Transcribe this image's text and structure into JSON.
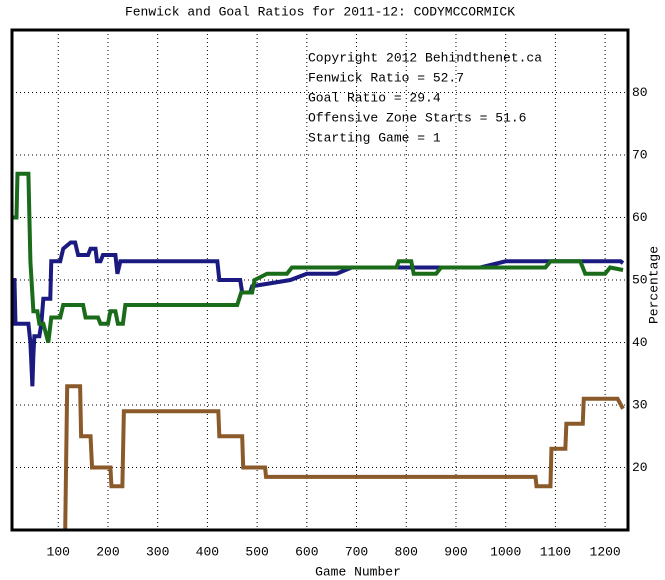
{
  "chart_data": {
    "type": "line",
    "title": "Fenwick and Goal Ratios for 2011-12: CODYMCCORMICK",
    "x_label": "Game Number",
    "y_label": "Percentage",
    "xlim": [
      7,
      1246
    ],
    "ylim": [
      10,
      90
    ],
    "xticks": [
      100,
      200,
      300,
      400,
      500,
      600,
      700,
      800,
      900,
      1000,
      1100,
      1200
    ],
    "yticks": [
      20,
      30,
      40,
      50,
      60,
      70,
      80
    ],
    "grid": true,
    "annotations": [
      {
        "text": "Copyright 2012 Behindthenet.ca",
        "color": "#000000"
      },
      {
        "text": "Fenwick Ratio = 52.7",
        "color": "#1a1a80"
      },
      {
        "text": "Goal Ratio = 29.4",
        "color": "#8b5a2b"
      },
      {
        "text": "Offensive Zone Starts = 51.6",
        "color": "#1a6b1a"
      },
      {
        "text": "Starting Game = 1",
        "color": "#000000"
      }
    ],
    "series": [
      {
        "color": "#1a1a80",
        "x": [
          8,
          12,
          14,
          40,
          44,
          48,
          50,
          52,
          62,
          66,
          70,
          84,
          86,
          104,
          110,
          125,
          134,
          140,
          160,
          165,
          175,
          178,
          185,
          190,
          215,
          219,
          225,
          420,
          424,
          466,
          470,
          486,
          490,
          567,
          600,
          660,
          690,
          949,
          1000,
          1110,
          1150,
          1231,
          1236
        ],
        "values": [
          50,
          50,
          43,
          43,
          40,
          33,
          38,
          41,
          41,
          43,
          47,
          47,
          53,
          53,
          55,
          56,
          56,
          54,
          54,
          55,
          55,
          53,
          53,
          54,
          54,
          51,
          53,
          53,
          50,
          50,
          48,
          48,
          49,
          50,
          51,
          51,
          52,
          52,
          53,
          53,
          53,
          53,
          52.7
        ]
      },
      {
        "color": "#8b5a2b",
        "x": [
          114,
          118,
          144,
          146,
          165,
          168,
          205,
          207,
          229,
          232,
          422,
          424,
          470,
          472,
          516,
          518,
          1060,
          1062,
          1090,
          1092,
          1120,
          1122,
          1155,
          1157,
          1225,
          1236
        ],
        "values": [
          10,
          33,
          33,
          25,
          25,
          20,
          20,
          17,
          17,
          29,
          29,
          25,
          25,
          20,
          20,
          18.5,
          18.5,
          17,
          17,
          23,
          23,
          27,
          27,
          31,
          31,
          29.4
        ]
      },
      {
        "color": "#1a6b1a",
        "x": [
          8,
          16,
          18,
          40,
          44,
          50,
          58,
          62,
          70,
          80,
          86,
          104,
          110,
          150,
          155,
          180,
          185,
          200,
          205,
          215,
          220,
          230,
          235,
          460,
          468,
          490,
          495,
          520,
          560,
          570,
          780,
          785,
          810,
          815,
          860,
          870,
          1080,
          1090,
          1150,
          1160,
          1200,
          1210,
          1236
        ],
        "values": [
          60,
          60,
          67,
          67,
          53,
          45,
          45,
          43,
          43,
          40,
          44,
          44,
          46,
          46,
          44,
          44,
          43,
          43,
          45,
          45,
          43,
          43,
          46,
          46,
          48,
          48,
          50,
          51,
          51,
          52,
          52,
          53,
          53,
          51,
          51,
          52,
          52,
          53,
          53,
          51,
          51,
          52,
          51.6
        ]
      }
    ]
  }
}
